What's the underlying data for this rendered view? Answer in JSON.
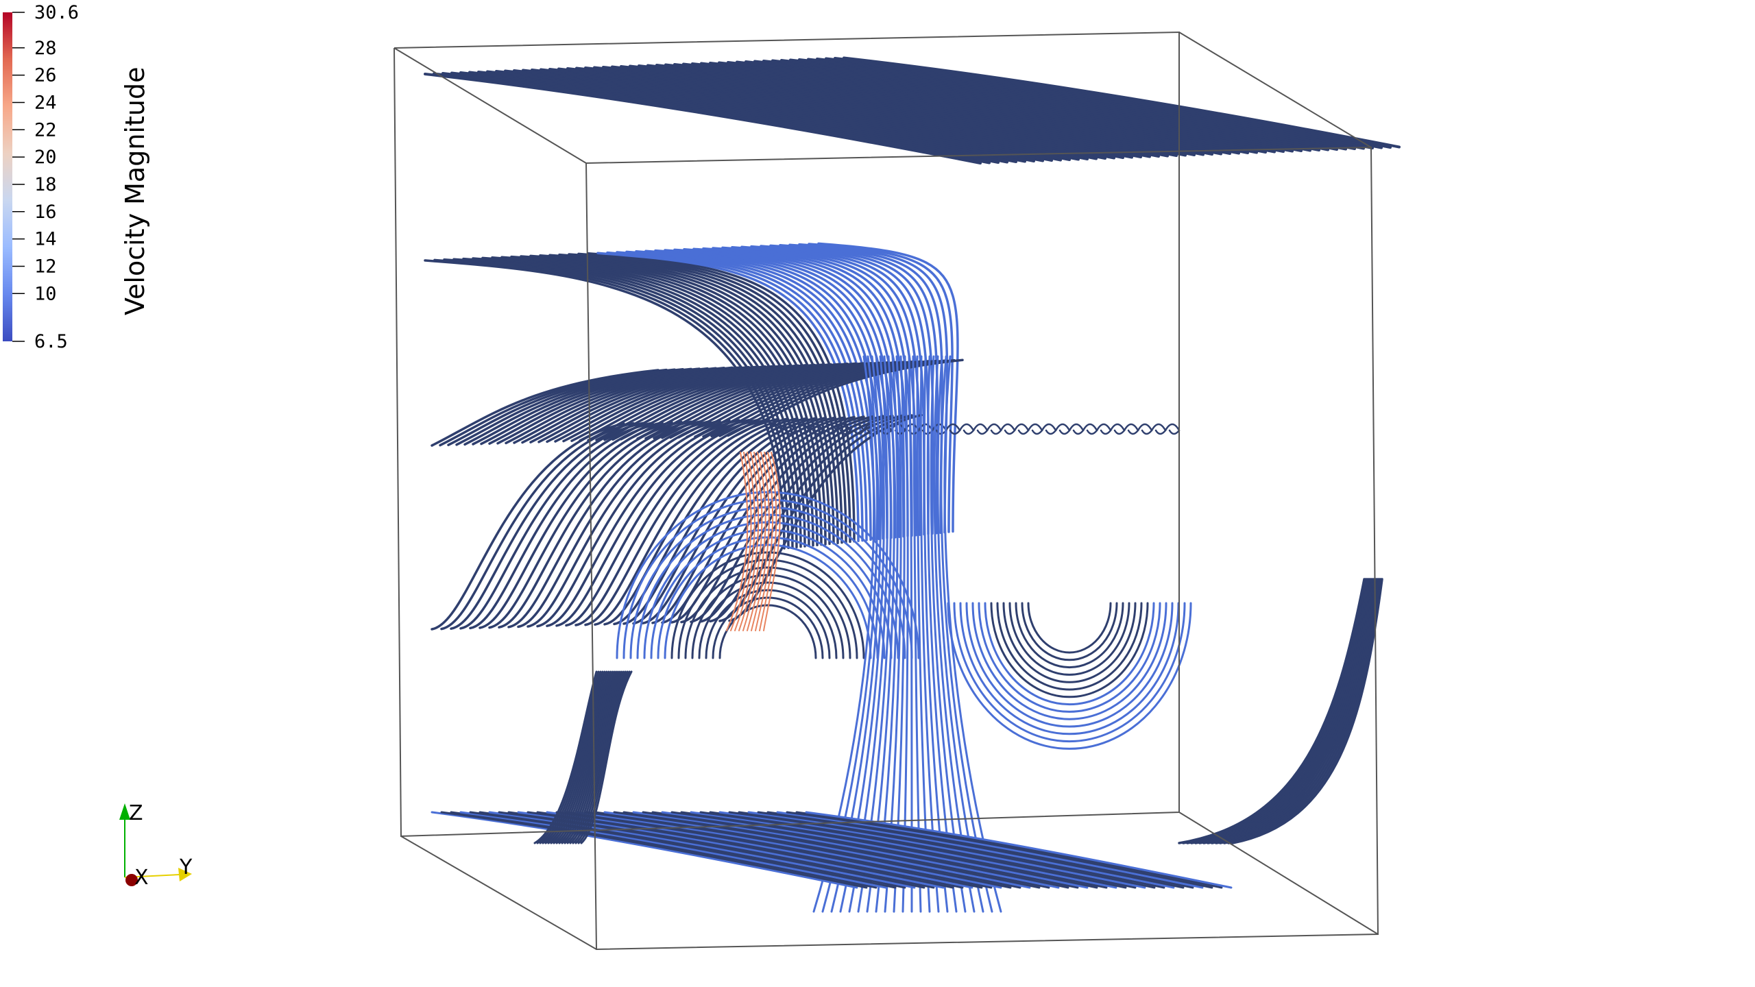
{
  "colorbar": {
    "title": "Velocity Magnitude",
    "range": [
      6.5,
      30.6
    ],
    "max_label": "30.6",
    "min_label": "6.5",
    "ticks": [
      "28",
      "26",
      "24",
      "22",
      "20",
      "18",
      "16",
      "14",
      "12",
      "10"
    ],
    "colormap": [
      "#3b4cc0",
      "#6788ee",
      "#9abbff",
      "#c9d7f0",
      "#edd1c2",
      "#f7a889",
      "#e26952",
      "#b40426"
    ]
  },
  "orientation_axes": {
    "z_label": "Z",
    "x_label": "X",
    "y_label": "Y",
    "colors": {
      "z": "#00b000",
      "x": "#c00000",
      "y": "#e6d000"
    }
  },
  "scene": {
    "background": "#ffffff",
    "outline_color": "#555555",
    "streamline_colors": {
      "slow": "#2f3f6e",
      "mid": "#4a6fd6",
      "fast": "#e8845f"
    }
  }
}
